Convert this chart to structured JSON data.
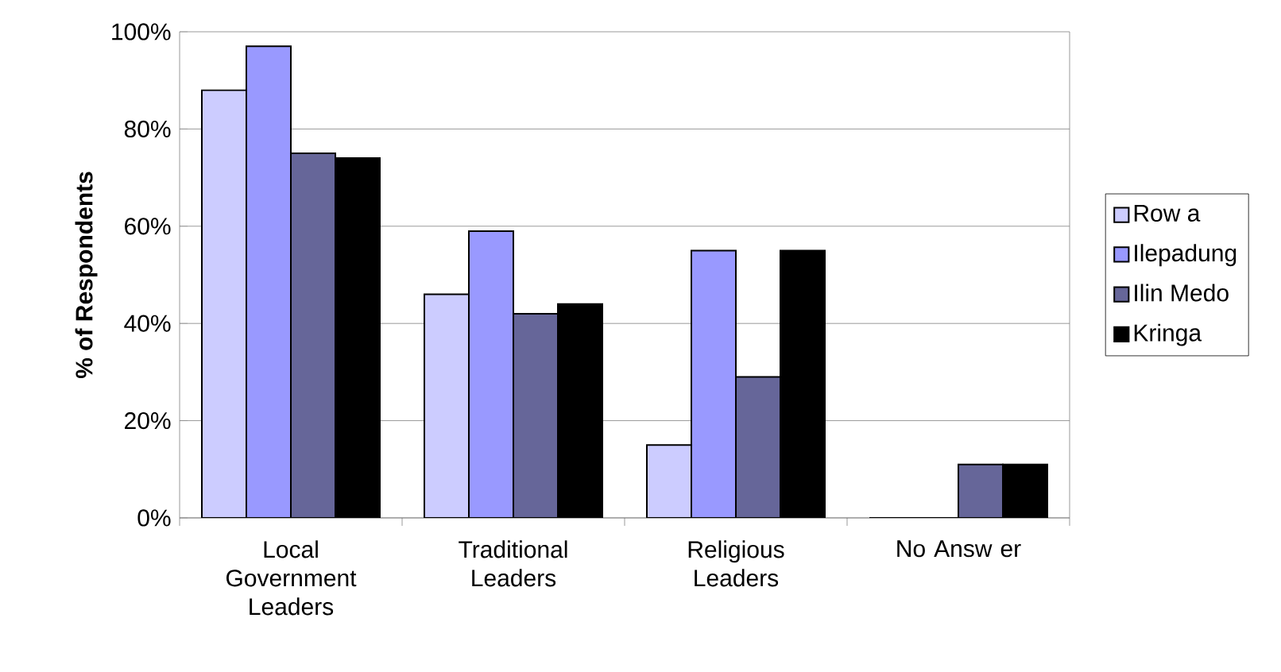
{
  "chart_data": {
    "type": "bar",
    "ylabel": "% of Respondents",
    "categories": [
      "Local Government Leaders",
      "Traditional Leaders",
      "Religious Leaders",
      "No Answ er"
    ],
    "series": [
      {
        "name": "Row a",
        "color": "#ccccff",
        "values": [
          88,
          46,
          15,
          0
        ]
      },
      {
        "name": "Ilepadung",
        "color": "#9999ff",
        "values": [
          97,
          59,
          55,
          0
        ]
      },
      {
        "name": "Ilin Medo",
        "color": "#666699",
        "values": [
          75,
          42,
          29,
          11
        ]
      },
      {
        "name": "Kringa",
        "color": "#000000",
        "values": [
          74,
          44,
          55,
          11
        ]
      }
    ],
    "ylim": [
      0,
      100
    ],
    "yticks": [
      {
        "value": 0,
        "label": "0%"
      },
      {
        "value": 20,
        "label": "20%"
      },
      {
        "value": 40,
        "label": "40%"
      },
      {
        "value": 60,
        "label": "60%"
      },
      {
        "value": 80,
        "label": "80%"
      },
      {
        "value": 100,
        "label": "100%"
      }
    ],
    "grid": "y",
    "legend": "right"
  }
}
